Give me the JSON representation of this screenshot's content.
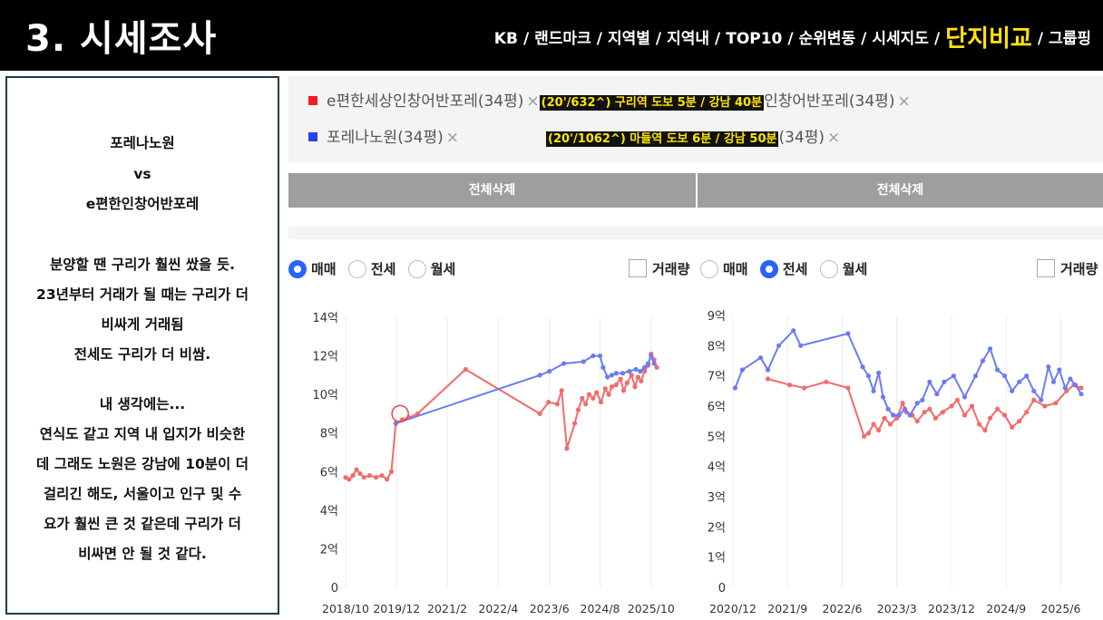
{
  "header": {
    "title": "3. 시세조사",
    "nav": [
      "KB",
      "랜드마크",
      "지역별",
      "지역내",
      "TOP10",
      "순위변동",
      "시세지도",
      "단지비교",
      "그룹핑"
    ],
    "nav_sep": "/",
    "active_nav": "단지비교"
  },
  "notes": {
    "lines": [
      "포레나노원",
      "vs",
      "e편한인창어반포레",
      "",
      "분양할 땐 구리가 훨씬 쌌을 듯.",
      "23년부터 거래가 될 때는 구리가 더",
      "비싸게 거래됨",
      "전세도 구리가 더 비쌈.",
      "",
      "내 생각에는...",
      "연식도 같고 지역 내 입지가 비슷한",
      "데 그래도 노원은 강남에 10분이 더",
      "걸리긴 해도, 서울이고 인구 및 수",
      "요가 훨씬 큰 것 같은데 구리가 더",
      "비싸면 안 될 것 같다."
    ]
  },
  "filter": {
    "item1_name": "e편한세상인창어반포레(34평)",
    "item1_note": "(20'/632^) 구리역 도보 5분 /  강남 40분",
    "item1_tail": "인창어반포레(34평)",
    "item2_name": "포레나노원(34평)",
    "item2_note": "(20'/1062^) 마들역 도보 6분 / 강남 50분",
    "item2_tail": "(34평)",
    "remove_glyph": "×",
    "red_color": "#ee1c25",
    "blue_color": "#2941ef"
  },
  "buttons": {
    "delete_all_left": "전체삭제",
    "delete_all_right": "전체삭제"
  },
  "left_panel": {
    "radios": [
      "매매",
      "전세",
      "월세"
    ],
    "selected": "매매",
    "checkbox": "거래량"
  },
  "right_panel": {
    "radios": [
      "매매",
      "전세",
      "월세"
    ],
    "selected": "전세",
    "checkbox": "거래량"
  },
  "chart_data": [
    {
      "type": "line",
      "title": "",
      "ylim": [
        0,
        14
      ],
      "yticks": [
        "0",
        "2억",
        "4억",
        "6억",
        "8억",
        "10억",
        "12억",
        "14억"
      ],
      "xlim": [
        2018.75,
        2025.92
      ],
      "xticks": [
        {
          "label": "2018/10",
          "x": 2018.75
        },
        {
          "label": "2019/12",
          "x": 2019.92
        },
        {
          "label": "2021/2",
          "x": 2021.08
        },
        {
          "label": "2022/4",
          "x": 2022.25
        },
        {
          "label": "2023/6",
          "x": 2023.42
        },
        {
          "label": "2024/8",
          "x": 2024.58
        },
        {
          "label": "2025/10",
          "x": 2025.75
        }
      ],
      "grid": "vertical",
      "series": [
        {
          "color": "#f26b6b",
          "points": [
            [
              2018.75,
              5.7
            ],
            [
              2018.83,
              5.6
            ],
            [
              2018.92,
              5.8
            ],
            [
              2019.0,
              6.1
            ],
            [
              2019.08,
              5.9
            ],
            [
              2019.17,
              5.7
            ],
            [
              2019.3,
              5.8
            ],
            [
              2019.45,
              5.7
            ],
            [
              2019.58,
              5.8
            ],
            [
              2019.7,
              5.6
            ],
            [
              2019.8,
              6.0
            ],
            [
              2019.9,
              8.5
            ],
            [
              2020.05,
              8.7
            ],
            [
              2020.2,
              8.8
            ],
            [
              2020.4,
              9.0
            ],
            [
              2021.5,
              11.3
            ],
            [
              2023.2,
              9.0
            ],
            [
              2023.4,
              9.6
            ],
            [
              2023.6,
              9.5
            ],
            [
              2023.7,
              10.2
            ],
            [
              2023.82,
              7.2
            ],
            [
              2024.0,
              8.5
            ],
            [
              2024.08,
              9.2
            ],
            [
              2024.17,
              9.8
            ],
            [
              2024.25,
              9.5
            ],
            [
              2024.33,
              10.0
            ],
            [
              2024.42,
              9.8
            ],
            [
              2024.5,
              10.1
            ],
            [
              2024.6,
              9.6
            ],
            [
              2024.7,
              10.3
            ],
            [
              2024.78,
              10.0
            ],
            [
              2024.85,
              10.4
            ],
            [
              2024.95,
              10.5
            ],
            [
              2025.05,
              10.8
            ],
            [
              2025.12,
              10.2
            ],
            [
              2025.2,
              10.6
            ],
            [
              2025.3,
              11.0
            ],
            [
              2025.38,
              10.4
            ],
            [
              2025.45,
              10.9
            ],
            [
              2025.52,
              10.7
            ],
            [
              2025.6,
              11.2
            ],
            [
              2025.68,
              11.5
            ],
            [
              2025.75,
              12.1
            ],
            [
              2025.82,
              11.8
            ],
            [
              2025.88,
              11.4
            ]
          ]
        },
        {
          "color": "#6b7cf2",
          "points": [
            [
              2019.9,
              8.5
            ],
            [
              2023.2,
              11.0
            ],
            [
              2023.42,
              11.2
            ],
            [
              2023.75,
              11.6
            ],
            [
              2024.2,
              11.7
            ],
            [
              2024.42,
              12.0
            ],
            [
              2024.58,
              12.0
            ],
            [
              2024.65,
              11.4
            ],
            [
              2024.75,
              10.9
            ],
            [
              2024.85,
              11.0
            ],
            [
              2024.95,
              11.1
            ],
            [
              2025.1,
              11.1
            ],
            [
              2025.25,
              11.2
            ],
            [
              2025.4,
              11.3
            ],
            [
              2025.5,
              11.2
            ],
            [
              2025.6,
              11.4
            ],
            [
              2025.68,
              11.6
            ],
            [
              2025.75,
              12.0
            ],
            [
              2025.82,
              11.6
            ]
          ]
        }
      ],
      "annotations": [
        {
          "shape": "circle",
          "x": 2020.0,
          "y": 9.0
        }
      ]
    },
    {
      "type": "line",
      "title": "",
      "ylim": [
        0,
        9
      ],
      "yticks": [
        "0",
        "1억",
        "2억",
        "3억",
        "4억",
        "5억",
        "6억",
        "7억",
        "8억",
        "9억"
      ],
      "xlim": [
        2020.92,
        2025.75
      ],
      "xticks": [
        {
          "label": "2020/12",
          "x": 2020.92
        },
        {
          "label": "2021/9",
          "x": 2021.67
        },
        {
          "label": "2022/6",
          "x": 2022.42
        },
        {
          "label": "2023/3",
          "x": 2023.17
        },
        {
          "label": "2023/12",
          "x": 2023.92
        },
        {
          "label": "2024/9",
          "x": 2024.67
        },
        {
          "label": "2025/6",
          "x": 2025.42
        }
      ],
      "grid": "vertical",
      "series": [
        {
          "color": "#f26b6b",
          "points": [
            [
              2021.4,
              6.9
            ],
            [
              2021.7,
              6.7
            ],
            [
              2021.9,
              6.6
            ],
            [
              2022.2,
              6.8
            ],
            [
              2022.5,
              6.6
            ],
            [
              2022.72,
              5.0
            ],
            [
              2022.78,
              5.1
            ],
            [
              2022.85,
              5.4
            ],
            [
              2022.92,
              5.2
            ],
            [
              2023.0,
              5.6
            ],
            [
              2023.08,
              5.4
            ],
            [
              2023.17,
              5.6
            ],
            [
              2023.25,
              6.1
            ],
            [
              2023.3,
              5.8
            ],
            [
              2023.38,
              5.7
            ],
            [
              2023.45,
              5.5
            ],
            [
              2023.55,
              5.8
            ],
            [
              2023.62,
              5.9
            ],
            [
              2023.7,
              5.6
            ],
            [
              2023.8,
              5.8
            ],
            [
              2023.92,
              6.0
            ],
            [
              2024.0,
              6.2
            ],
            [
              2024.1,
              5.7
            ],
            [
              2024.2,
              6.0
            ],
            [
              2024.3,
              5.4
            ],
            [
              2024.38,
              5.2
            ],
            [
              2024.45,
              5.6
            ],
            [
              2024.55,
              5.9
            ],
            [
              2024.65,
              5.7
            ],
            [
              2024.75,
              5.3
            ],
            [
              2024.85,
              5.5
            ],
            [
              2024.95,
              5.8
            ],
            [
              2025.05,
              6.2
            ],
            [
              2025.2,
              6.0
            ],
            [
              2025.35,
              6.1
            ],
            [
              2025.5,
              6.5
            ],
            [
              2025.6,
              6.7
            ],
            [
              2025.7,
              6.6
            ]
          ]
        },
        {
          "color": "#6b7cf2",
          "points": [
            [
              2020.95,
              6.6
            ],
            [
              2021.05,
              7.2
            ],
            [
              2021.3,
              7.6
            ],
            [
              2021.4,
              7.2
            ],
            [
              2021.55,
              8.0
            ],
            [
              2021.75,
              8.5
            ],
            [
              2021.85,
              8.0
            ],
            [
              2022.5,
              8.4
            ],
            [
              2022.7,
              7.3
            ],
            [
              2022.78,
              7.0
            ],
            [
              2022.85,
              6.5
            ],
            [
              2022.92,
              7.1
            ],
            [
              2022.98,
              6.3
            ],
            [
              2023.05,
              5.9
            ],
            [
              2023.12,
              5.7
            ],
            [
              2023.2,
              5.7
            ],
            [
              2023.28,
              5.9
            ],
            [
              2023.35,
              5.7
            ],
            [
              2023.45,
              6.1
            ],
            [
              2023.52,
              6.2
            ],
            [
              2023.62,
              6.8
            ],
            [
              2023.72,
              6.4
            ],
            [
              2023.82,
              6.8
            ],
            [
              2023.95,
              7.0
            ],
            [
              2024.1,
              6.3
            ],
            [
              2024.25,
              7.0
            ],
            [
              2024.35,
              7.5
            ],
            [
              2024.45,
              7.9
            ],
            [
              2024.55,
              7.2
            ],
            [
              2024.65,
              7.0
            ],
            [
              2024.75,
              6.5
            ],
            [
              2024.85,
              6.8
            ],
            [
              2024.95,
              7.0
            ],
            [
              2025.05,
              6.5
            ],
            [
              2025.15,
              6.2
            ],
            [
              2025.25,
              7.3
            ],
            [
              2025.32,
              6.8
            ],
            [
              2025.4,
              7.2
            ],
            [
              2025.48,
              6.6
            ],
            [
              2025.55,
              6.9
            ],
            [
              2025.62,
              6.7
            ],
            [
              2025.7,
              6.4
            ]
          ]
        }
      ]
    }
  ]
}
